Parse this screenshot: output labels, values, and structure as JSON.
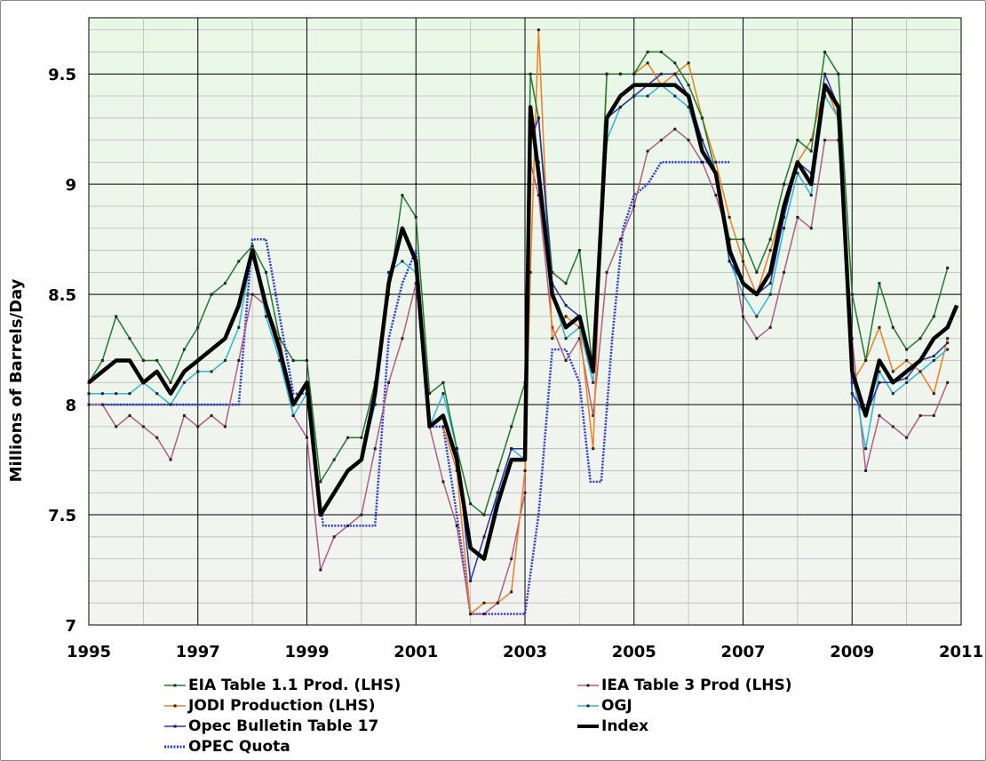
{
  "chart_data": {
    "type": "line",
    "title": "",
    "xlabel": "",
    "ylabel": "Millions of Barrels/Day",
    "xlim": [
      1995,
      2011
    ],
    "ylim": [
      7,
      9.75
    ],
    "x_ticks": [
      "1995",
      "1997",
      "1999",
      "2001",
      "2003",
      "2005",
      "2007",
      "2009",
      "2011"
    ],
    "y_ticks": [
      "7",
      "7.5",
      "8",
      "8.5",
      "9",
      "9.5"
    ],
    "legend_position": "bottom",
    "grid": true,
    "series": [
      {
        "name": "EIA Table 1.1 Prod. (LHS)",
        "color": "#1f7a2e",
        "x": [
          1995.0,
          1995.25,
          1995.5,
          1995.75,
          1996.0,
          1996.25,
          1996.5,
          1996.75,
          1997.0,
          1997.25,
          1997.5,
          1997.75,
          1998.0,
          1998.25,
          1998.5,
          1998.75,
          1999.0,
          1999.25,
          1999.5,
          1999.75,
          2000.0,
          2000.25,
          2000.5,
          2000.75,
          2001.0,
          2001.25,
          2001.5,
          2001.75,
          2002.0,
          2002.25,
          2002.5,
          2002.75,
          2003.0,
          2003.1,
          2003.25,
          2003.5,
          2003.75,
          2004.0,
          2004.25,
          2004.5,
          2004.75,
          2005.0,
          2005.25,
          2005.5,
          2005.75,
          2006.0,
          2006.25,
          2006.5,
          2006.75,
          2007.0,
          2007.25,
          2007.5,
          2007.75,
          2008.0,
          2008.25,
          2008.5,
          2008.75,
          2009.0,
          2009.25,
          2009.5,
          2009.75,
          2010.0,
          2010.25,
          2010.5,
          2010.75
        ],
        "y": [
          8.1,
          8.2,
          8.4,
          8.3,
          8.2,
          8.2,
          8.1,
          8.25,
          8.35,
          8.5,
          8.55,
          8.65,
          8.72,
          8.6,
          8.3,
          8.2,
          8.2,
          7.65,
          7.75,
          7.85,
          7.85,
          8.1,
          8.5,
          8.95,
          8.85,
          8.05,
          8.1,
          7.8,
          7.55,
          7.5,
          7.7,
          7.9,
          8.1,
          9.5,
          9.3,
          8.6,
          8.55,
          8.7,
          8.15,
          9.5,
          9.5,
          9.5,
          9.6,
          9.6,
          9.55,
          9.45,
          9.3,
          9.05,
          8.75,
          8.75,
          8.6,
          8.75,
          9.0,
          9.2,
          9.15,
          9.6,
          9.5,
          8.5,
          8.2,
          8.55,
          8.35,
          8.25,
          8.3,
          8.4,
          8.62
        ]
      },
      {
        "name": "IEA Table 3 Prod (LHS)",
        "color": "#b05c8a",
        "x": [
          1995.0,
          1995.25,
          1995.5,
          1995.75,
          1996.0,
          1996.25,
          1996.5,
          1996.75,
          1997.0,
          1997.25,
          1997.5,
          1997.75,
          1998.0,
          1998.25,
          1998.5,
          1998.75,
          1999.0,
          1999.25,
          1999.5,
          1999.75,
          2000.0,
          2000.25,
          2000.5,
          2000.75,
          2001.0,
          2001.25,
          2001.5,
          2001.75,
          2002.0,
          2002.25,
          2002.5,
          2002.75,
          2003.0,
          2003.1,
          2003.25,
          2003.5,
          2003.75,
          2004.0,
          2004.25,
          2004.5,
          2004.75,
          2005.0,
          2005.25,
          2005.5,
          2005.75,
          2006.0,
          2006.25,
          2006.5,
          2006.75,
          2007.0,
          2007.25,
          2007.5,
          2007.75,
          2008.0,
          2008.25,
          2008.5,
          2008.75,
          2009.0,
          2009.25,
          2009.5,
          2009.75,
          2010.0,
          2010.25,
          2010.5,
          2010.75
        ],
        "y": [
          8.0,
          8.0,
          7.9,
          7.95,
          7.9,
          7.85,
          7.75,
          7.95,
          7.9,
          7.95,
          7.9,
          8.2,
          8.5,
          8.45,
          8.3,
          7.95,
          7.85,
          7.25,
          7.4,
          7.45,
          7.5,
          7.8,
          8.1,
          8.3,
          8.55,
          7.9,
          7.65,
          7.45,
          7.05,
          7.05,
          7.1,
          7.3,
          7.6,
          9.1,
          8.95,
          8.35,
          8.2,
          8.3,
          7.95,
          8.6,
          8.75,
          8.9,
          9.15,
          9.2,
          9.25,
          9.2,
          9.1,
          8.95,
          8.75,
          8.4,
          8.3,
          8.35,
          8.6,
          8.85,
          8.8,
          9.2,
          9.2,
          8.3,
          7.7,
          7.95,
          7.9,
          7.85,
          7.95,
          7.95,
          8.1
        ]
      },
      {
        "name": "JODI Production (LHS)",
        "color": "#f07d1e",
        "x": [
          2001.5,
          2001.75,
          2002.0,
          2002.25,
          2002.5,
          2002.75,
          2003.0,
          2003.1,
          2003.25,
          2003.5,
          2003.75,
          2004.0,
          2004.25,
          2004.5,
          2004.75,
          2005.0,
          2005.25,
          2005.5,
          2005.75,
          2006.0,
          2006.25,
          2006.5,
          2006.75,
          2007.0,
          2007.25,
          2007.5,
          2007.75,
          2008.0,
          2008.25,
          2008.5,
          2008.75,
          2009.0,
          2009.25,
          2009.5,
          2009.75,
          2010.0,
          2010.25,
          2010.5,
          2010.75
        ],
        "y": [
          7.9,
          7.7,
          7.05,
          7.1,
          7.1,
          7.15,
          7.7,
          8.6,
          9.7,
          8.3,
          8.4,
          8.35,
          7.8,
          9.5,
          9.5,
          9.5,
          9.55,
          9.45,
          9.5,
          9.55,
          9.3,
          9.1,
          8.85,
          8.65,
          8.5,
          8.7,
          8.9,
          9.1,
          9.2,
          9.45,
          9.3,
          8.1,
          8.2,
          8.35,
          8.15,
          8.2,
          8.15,
          8.05,
          8.3
        ]
      },
      {
        "name": "OGJ",
        "color": "#2bb6d6",
        "x": [
          1995.0,
          1995.25,
          1995.5,
          1995.75,
          1996.0,
          1996.25,
          1996.5,
          1996.75,
          1997.0,
          1997.25,
          1997.5,
          1997.75,
          1998.0,
          1998.25,
          1998.5,
          1998.75,
          1999.0,
          1999.25,
          1999.5,
          1999.75,
          2000.0,
          2000.25,
          2000.5,
          2000.75,
          2001.0,
          2001.25,
          2001.5,
          2001.75,
          2002.0,
          2002.25,
          2002.5,
          2002.75,
          2003.0,
          2003.1,
          2003.25,
          2003.5,
          2003.75,
          2004.0,
          2004.25,
          2004.5,
          2004.75,
          2005.0,
          2005.25,
          2005.5,
          2005.75,
          2006.0,
          2006.25,
          2006.5,
          2006.75,
          2007.0,
          2007.25,
          2007.5,
          2007.75,
          2008.0,
          2008.25,
          2008.5,
          2008.75,
          2009.0,
          2009.25,
          2009.5,
          2009.75,
          2010.0,
          2010.25,
          2010.5,
          2010.75
        ],
        "y": [
          8.05,
          8.05,
          8.05,
          8.05,
          8.1,
          8.05,
          8.0,
          8.1,
          8.15,
          8.15,
          8.2,
          8.35,
          8.7,
          8.4,
          8.2,
          7.95,
          8.05,
          7.5,
          7.6,
          7.7,
          7.75,
          8.0,
          8.6,
          8.65,
          8.6,
          7.9,
          8.05,
          7.8,
          7.35,
          7.3,
          7.6,
          7.8,
          7.75,
          9.3,
          9.1,
          8.5,
          8.3,
          8.35,
          8.1,
          9.2,
          9.35,
          9.4,
          9.4,
          9.45,
          9.4,
          9.35,
          9.15,
          9.05,
          8.65,
          8.5,
          8.4,
          8.5,
          8.8,
          9.05,
          8.95,
          9.4,
          9.3,
          8.15,
          7.8,
          8.15,
          8.05,
          8.1,
          8.15,
          8.2,
          8.25
        ]
      },
      {
        "name": "Opec Bulletin Table 17",
        "color": "#2630a8",
        "x": [
          2001.75,
          2002.0,
          2002.25,
          2002.5,
          2002.75,
          2003.0,
          2003.1,
          2003.25,
          2003.5,
          2003.75,
          2004.0,
          2004.25,
          2004.5,
          2004.75,
          2005.0,
          2005.25,
          2005.5,
          2005.75,
          2006.0,
          2006.25,
          2006.5,
          2006.75,
          2007.0,
          2007.25,
          2007.5,
          2007.75,
          2008.0,
          2008.25,
          2008.5,
          2008.75,
          2009.0,
          2009.25,
          2009.5,
          2009.75,
          2010.0,
          2010.25,
          2010.5,
          2010.75
        ],
        "y": [
          7.8,
          7.2,
          7.4,
          7.6,
          7.8,
          7.8,
          9.2,
          9.3,
          8.55,
          8.45,
          8.4,
          8.15,
          9.3,
          9.35,
          9.4,
          9.45,
          9.5,
          9.5,
          9.4,
          9.2,
          9.05,
          8.65,
          8.55,
          8.5,
          8.55,
          8.85,
          9.1,
          9.05,
          9.5,
          9.35,
          8.05,
          7.95,
          8.1,
          8.1,
          8.12,
          8.2,
          8.22,
          8.28
        ]
      },
      {
        "name": "Index",
        "color": "#000000",
        "x": [
          1995.0,
          1995.25,
          1995.5,
          1995.75,
          1996.0,
          1996.25,
          1996.5,
          1996.75,
          1997.0,
          1997.25,
          1997.5,
          1997.75,
          1998.0,
          1998.25,
          1998.5,
          1998.75,
          1999.0,
          1999.25,
          1999.5,
          1999.75,
          2000.0,
          2000.25,
          2000.5,
          2000.75,
          2001.0,
          2001.25,
          2001.5,
          2001.75,
          2002.0,
          2002.25,
          2002.5,
          2002.75,
          2003.0,
          2003.1,
          2003.25,
          2003.5,
          2003.75,
          2004.0,
          2004.25,
          2004.5,
          2004.75,
          2005.0,
          2005.25,
          2005.5,
          2005.75,
          2006.0,
          2006.25,
          2006.5,
          2006.75,
          2007.0,
          2007.25,
          2007.5,
          2007.75,
          2008.0,
          2008.25,
          2008.5,
          2008.75,
          2009.0,
          2009.25,
          2009.5,
          2009.75,
          2010.0,
          2010.25,
          2010.5,
          2010.75,
          2010.92
        ],
        "y": [
          8.1,
          8.15,
          8.2,
          8.2,
          8.1,
          8.15,
          8.05,
          8.15,
          8.2,
          8.25,
          8.3,
          8.45,
          8.7,
          8.45,
          8.25,
          8.0,
          8.1,
          7.5,
          7.6,
          7.7,
          7.75,
          8.05,
          8.55,
          8.8,
          8.65,
          7.9,
          7.95,
          7.75,
          7.35,
          7.3,
          7.55,
          7.75,
          7.75,
          9.35,
          9.05,
          8.5,
          8.35,
          8.4,
          8.15,
          9.3,
          9.4,
          9.45,
          9.45,
          9.45,
          9.45,
          9.4,
          9.15,
          9.05,
          8.7,
          8.55,
          8.5,
          8.6,
          8.9,
          9.1,
          9.0,
          9.45,
          9.35,
          8.15,
          7.95,
          8.2,
          8.1,
          8.15,
          8.2,
          8.3,
          8.35,
          8.45
        ]
      },
      {
        "name": "OPEC Quota",
        "color": "#2a3ad6",
        "x": [
          1995.0,
          1997.0,
          1997.75,
          1998.0,
          1998.25,
          1998.75,
          1999.0,
          1999.3,
          1999.5,
          2000.25,
          2000.5,
          2000.75,
          2001.0,
          2001.25,
          2001.5,
          2001.75,
          2002.0,
          2002.75,
          2003.0,
          2003.25,
          2003.5,
          2003.75,
          2004.0,
          2004.2,
          2004.4,
          2004.6,
          2004.8,
          2005.0,
          2005.25,
          2005.5,
          2006.0,
          2006.5,
          2006.75
        ],
        "y": [
          8.0,
          8.0,
          8.0,
          8.75,
          8.75,
          8.05,
          8.05,
          7.45,
          7.45,
          7.45,
          8.3,
          8.55,
          8.7,
          7.9,
          7.9,
          7.5,
          7.05,
          7.05,
          7.05,
          7.5,
          8.25,
          8.25,
          8.1,
          7.65,
          7.65,
          8.3,
          8.8,
          8.95,
          9.0,
          9.1,
          9.1,
          9.1,
          9.1
        ]
      }
    ]
  }
}
